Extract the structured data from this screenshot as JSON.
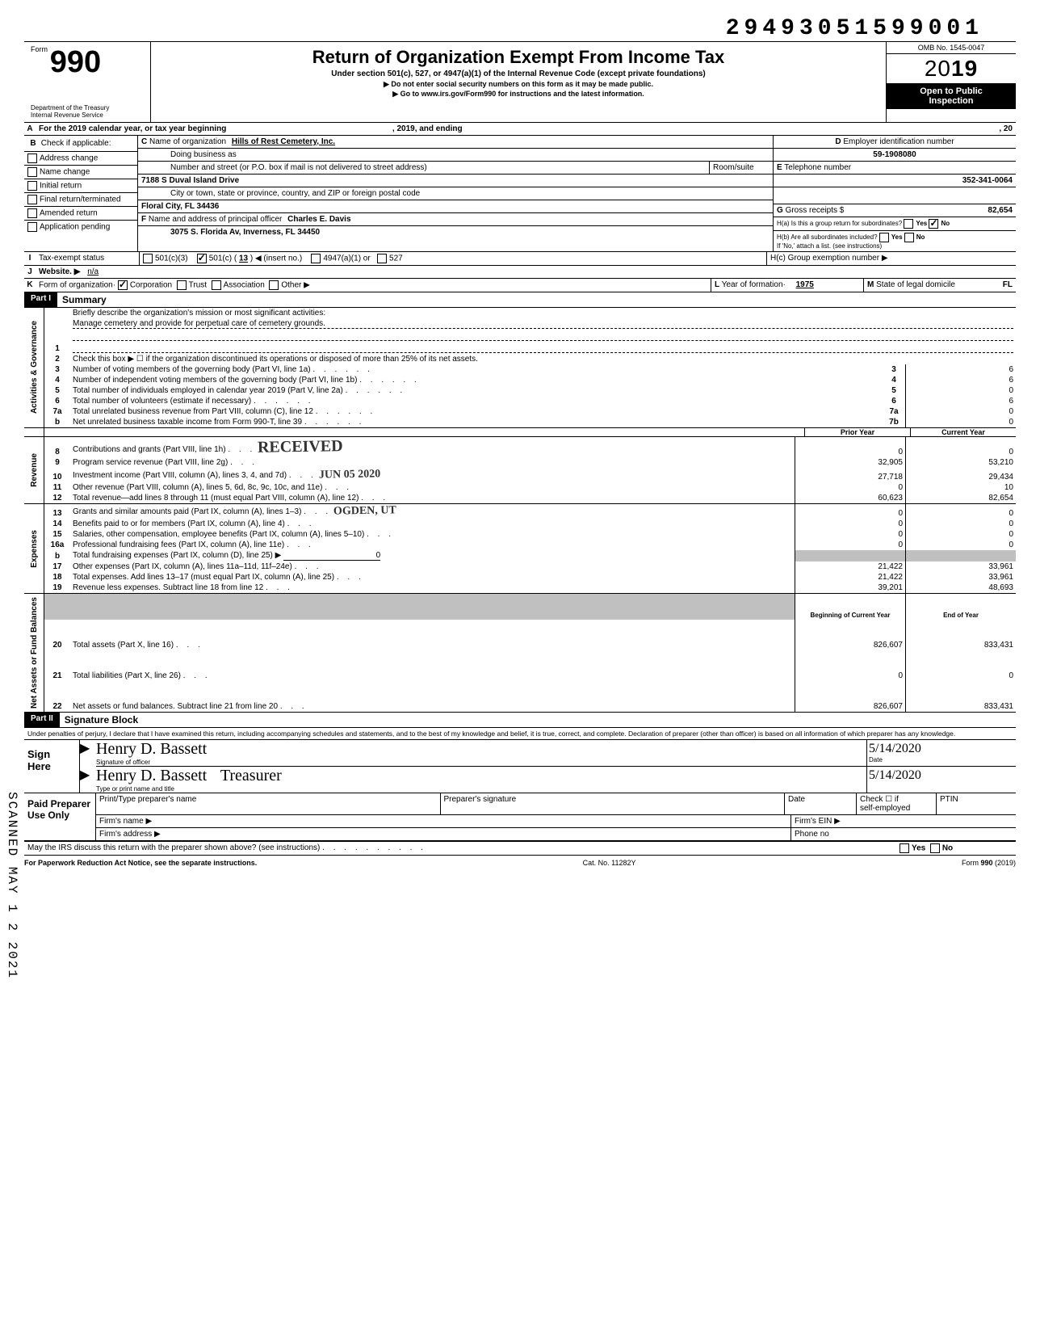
{
  "top_id": "29493051599001",
  "header": {
    "form_label": "Form",
    "form_number": "990",
    "title": "Return of Organization Exempt From Income Tax",
    "subtitle": "Under section 501(c), 527, or 4947(a)(1) of the Internal Revenue Code (except private foundations)",
    "line1": "▶ Do not enter social security numbers on this form as it may be made public.",
    "line2": "▶ Go to www.irs.gov/Form990 for instructions and the latest information.",
    "dept1": "Department of the Treasury",
    "dept2": "Internal Revenue Service",
    "omb": "OMB No. 1545-0047",
    "year_outline": "20",
    "year_bold": "19",
    "open1": "Open to Public",
    "open2": "Inspection"
  },
  "lineA": {
    "letter": "A",
    "text": "For the 2019 calendar year, or tax year beginning",
    "mid": ", 2019, and ending",
    "end": ", 20"
  },
  "lineB": {
    "letter": "B",
    "heading": "Check if applicable:",
    "opts": [
      "Address change",
      "Name change",
      "Initial return",
      "Final return/terminated",
      "Amended return",
      "Application pending"
    ]
  },
  "blockC": {
    "letter": "C",
    "name_label": "Name of organization",
    "name": "Hills of Rest Cemetery, Inc.",
    "dba_label": "Doing business as",
    "street_label": "Number and street (or P.O. box if mail is not delivered to street address)",
    "room_label": "Room/suite",
    "street": "7188 S Duval Island Drive",
    "city_label": "City or town, state or province, country, and ZIP or foreign postal code",
    "city": "Floral City, FL  34436"
  },
  "blockD": {
    "letter": "D",
    "label": "Employer identification number",
    "value": "59-1908080"
  },
  "blockE": {
    "letter": "E",
    "label": "Telephone number",
    "value": "352-341-0064"
  },
  "blockF": {
    "letter": "F",
    "label": "Name and address of principal officer",
    "name": "Charles E. Davis",
    "addr": "3075 S. Florida Av, Inverness, FL  34450"
  },
  "blockG": {
    "letter": "G",
    "label": "Gross receipts $",
    "value": "82,654"
  },
  "blockH": {
    "ha_label": "H(a) Is this a group return for subordinates?",
    "hb_label": "H(b) Are all subordinates included?",
    "yes": "Yes",
    "no": "No",
    "ha_no_checked": true,
    "attach": "If 'No,' attach a list. (see instructions)",
    "hc_label": "H(c) Group exemption number ▶"
  },
  "lineI": {
    "letter": "I",
    "label": "Tax-exempt status",
    "opt1": "501(c)(3)",
    "opt2_pre": "501(c) (",
    "opt2_num": "13",
    "opt2_post": ") ◀ (insert no.)",
    "opt3": "4947(a)(1) or",
    "opt4": "527"
  },
  "lineJ": {
    "letter": "J",
    "label": "Website. ▶",
    "value": "n/a"
  },
  "lineK": {
    "letter": "K",
    "label": "Form of organization·",
    "opts": [
      "Corporation",
      "Trust",
      "Association",
      "Other ▶"
    ],
    "yof_letter": "L",
    "yof_label": "Year of formation·",
    "yof_value": "1975",
    "state_letter": "M",
    "state_label": "State of legal domicile",
    "state_value": "FL"
  },
  "partI": {
    "tag": "Part I",
    "title": "Summary",
    "line1_label": "Briefly describe the organization's mission or most significant activities:",
    "line1_value": "Manage cemetery and provide for perpetual care of cemetery grounds.",
    "line2": "Check this box ▶ ☐ if the organization discontinued its operations or disposed of more than 25% of its net assets.",
    "lines": [
      {
        "no": "3",
        "text": "Number of voting members of the governing body (Part VI, line 1a)",
        "box": "3",
        "val": "6"
      },
      {
        "no": "4",
        "text": "Number of independent voting members of the governing body (Part VI, line 1b)",
        "box": "4",
        "val": "6"
      },
      {
        "no": "5",
        "text": "Total number of individuals employed in calendar year 2019 (Part V, line 2a)",
        "box": "5",
        "val": "0"
      },
      {
        "no": "6",
        "text": "Total number of volunteers (estimate if necessary)",
        "box": "6",
        "val": "6"
      },
      {
        "no": "7a",
        "text": "Total unrelated business revenue from Part VIII, column (C), line 12",
        "box": "7a",
        "val": "0"
      },
      {
        "no": "b",
        "text": "Net unrelated business taxable income from Form 990-T, line 39",
        "box": "7b",
        "val": "0"
      }
    ]
  },
  "revExp": {
    "colA": "Prior Year",
    "colB": "Current Year",
    "stamp1": "RECEIVED",
    "stamp2": "JUN 05 2020",
    "stamp3": "OGDEN, UT",
    "groups": [
      {
        "side": "Revenue",
        "rows": [
          {
            "no": "8",
            "text": "Contributions and grants (Part VIII, line 1h)",
            "a": "0",
            "b": "0"
          },
          {
            "no": "9",
            "text": "Program service revenue (Part VIII, line 2g)",
            "a": "32,905",
            "b": "53,210"
          },
          {
            "no": "10",
            "text": "Investment income (Part VIII, column (A), lines 3, 4, and 7d)",
            "a": "27,718",
            "b": "29,434"
          },
          {
            "no": "11",
            "text": "Other revenue (Part VIII, column (A), lines 5, 6d, 8c, 9c, 10c, and 11e)",
            "a": "0",
            "b": "10"
          },
          {
            "no": "12",
            "text": "Total revenue—add lines 8 through 11 (must equal Part VIII, column (A), line 12)",
            "a": "60,623",
            "b": "82,654"
          }
        ]
      },
      {
        "side": "Expenses",
        "rows": [
          {
            "no": "13",
            "text": "Grants and similar amounts paid (Part IX, column (A), lines 1–3)",
            "a": "0",
            "b": "0"
          },
          {
            "no": "14",
            "text": "Benefits paid to or for members (Part IX, column (A), line 4)",
            "a": "0",
            "b": "0"
          },
          {
            "no": "15",
            "text": "Salaries, other compensation, employee benefits (Part IX, column (A), lines 5–10)",
            "a": "0",
            "b": "0"
          },
          {
            "no": "16a",
            "text": "Professional fundraising fees (Part IX, column (A), line 11e)",
            "a": "0",
            "b": "0"
          },
          {
            "no": "b",
            "text": "Total fundraising expenses (Part IX, column (D), line 25) ▶",
            "a": "",
            "b": "",
            "inline": "0"
          },
          {
            "no": "17",
            "text": "Other expenses (Part IX, column (A), lines 11a–11d, 11f–24e)",
            "a": "21,422",
            "b": "33,961"
          },
          {
            "no": "18",
            "text": "Total expenses. Add lines 13–17 (must equal Part IX, column (A), line 25)",
            "a": "21,422",
            "b": "33,961"
          },
          {
            "no": "19",
            "text": "Revenue less expenses. Subtract line 18 from line 12",
            "a": "39,201",
            "b": "48,693"
          }
        ]
      },
      {
        "side": "Net Assets or Fund Balances",
        "rows": [
          {
            "no": "",
            "text": "",
            "a": "Beginning of Current Year",
            "b": "End of Year",
            "header": true
          },
          {
            "no": "20",
            "text": "Total assets (Part X, line 16)",
            "a": "826,607",
            "b": "833,431"
          },
          {
            "no": "21",
            "text": "Total liabilities (Part X, line 26)",
            "a": "0",
            "b": "0"
          },
          {
            "no": "22",
            "text": "Net assets or fund balances. Subtract line 21 from line 20",
            "a": "826,607",
            "b": "833,431"
          }
        ]
      }
    ]
  },
  "partII": {
    "tag": "Part II",
    "title": "Signature Block",
    "perjury": "Under penalties of perjury, I declare that I have examined this return, including accompanying schedules and statements, and to the best of my knowledge and belief, it is true, correct, and complete. Declaration of preparer (other than officer) is based on all information of which preparer has any knowledge.",
    "sign_here": "Sign Here",
    "sig_officer_label": "Signature of officer",
    "date_label": "Date",
    "sig_name": "Henry D. Bassett",
    "sig_date1": "5/14/2020",
    "type_name_label": "Type or print name and title",
    "type_name": "Henry D. Bassett",
    "title_value": "Treasurer",
    "sig_date2": "5/14/2020"
  },
  "paid": {
    "heading": "Paid Preparer Use Only",
    "c1": "Print/Type preparer's name",
    "c2": "Preparer's signature",
    "c3": "Date",
    "c4a": "Check ☐ if",
    "c4b": "self-employed",
    "c5": "PTIN",
    "firm_name": "Firm's name    ▶",
    "firm_ein": "Firm's EIN ▶",
    "firm_addr": "Firm's address ▶",
    "phone": "Phone no"
  },
  "bottom": {
    "discuss": "May the IRS discuss this return with the preparer shown above? (see instructions)",
    "yes": "Yes",
    "no": "No",
    "paperwork": "For Paperwork Reduction Act Notice, see the separate instructions.",
    "cat": "Cat. No. 11282Y",
    "form": "Form 990 (2019)"
  },
  "side_text": "SCANNED MAY 1 2 2021",
  "side_groups": [
    "Activities & Governance",
    "Revenue",
    "Expenses",
    "Net Assets or\nFund Balances"
  ]
}
